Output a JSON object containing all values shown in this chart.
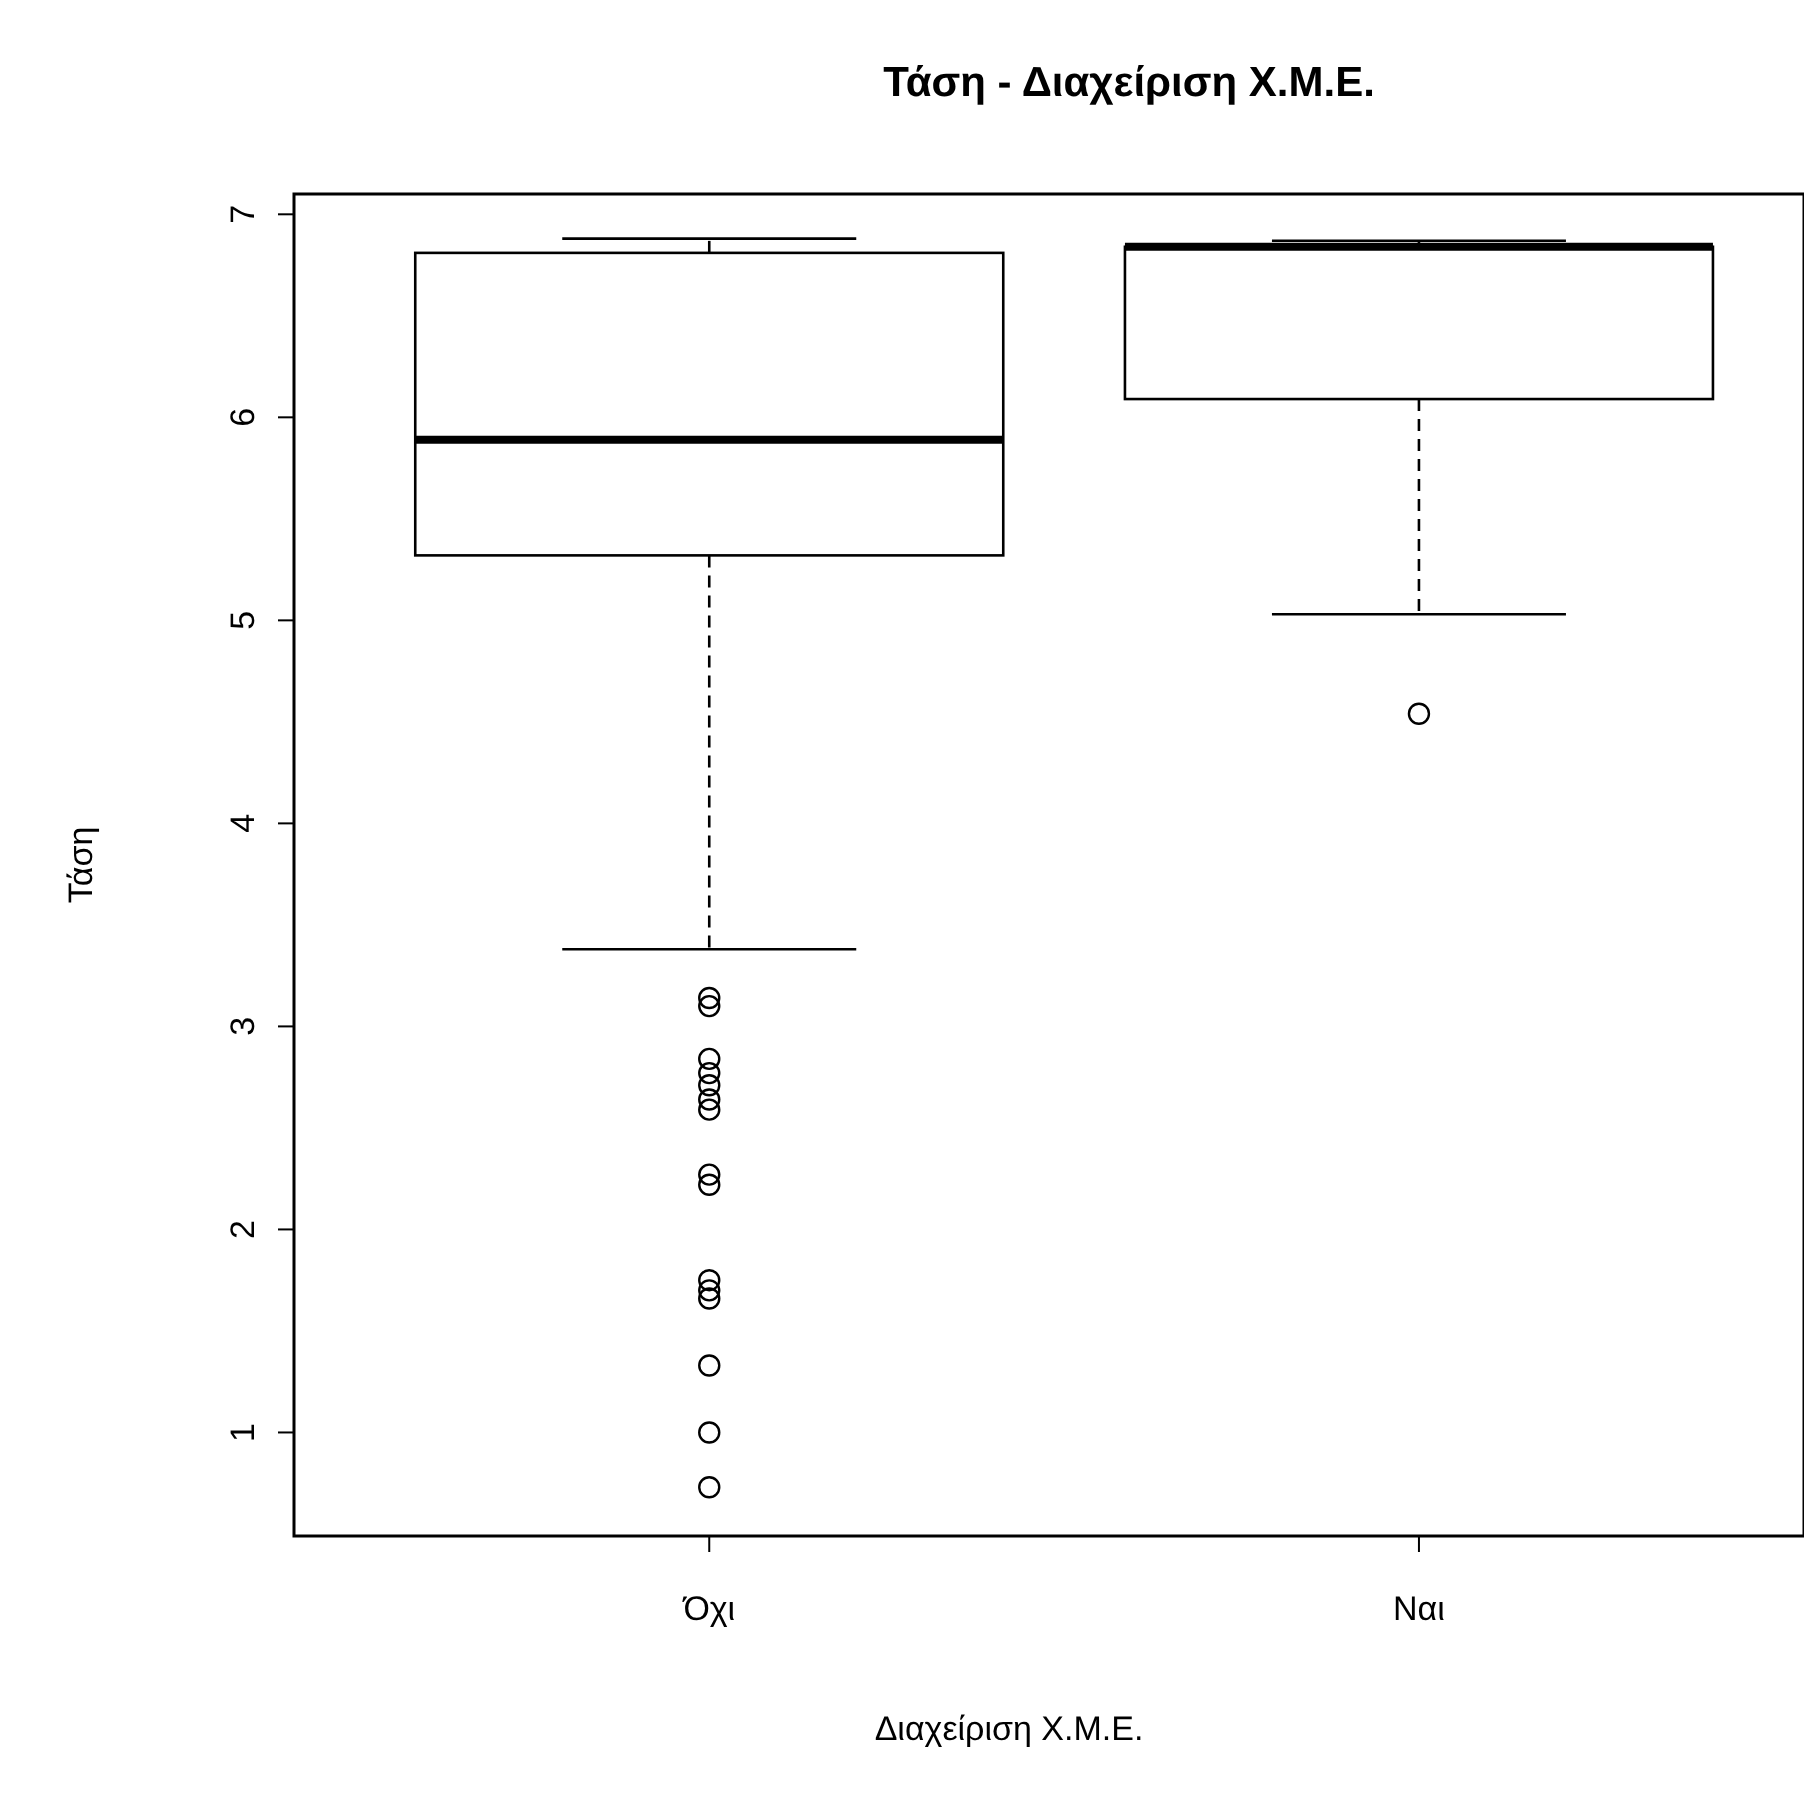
{
  "chart_data": {
    "type": "box",
    "title": "Τάση - Διαχείριση Χ.Μ.Ε.",
    "xlabel": "Διαχείριση Χ.Μ.Ε.",
    "ylabel": "Τάση",
    "categories": [
      "Όχι",
      "Ναι"
    ],
    "boxes": [
      {
        "low": 3.38,
        "q1": 5.32,
        "median": 5.89,
        "q3": 6.81,
        "high": 6.88,
        "outliers": [
          3.14,
          3.1,
          2.84,
          2.77,
          2.71,
          2.64,
          2.59,
          2.27,
          2.22,
          1.75,
          1.7,
          1.66,
          1.33,
          1.0,
          0.73
        ]
      },
      {
        "low": 5.03,
        "q1": 6.09,
        "median": 6.84,
        "q3": 6.84,
        "high": 6.87,
        "outliers": [
          4.54
        ]
      }
    ],
    "ylim": [
      0.49,
      7.1
    ],
    "yticks": [
      1,
      2,
      3,
      4,
      5,
      6,
      7
    ],
    "grid": false
  }
}
